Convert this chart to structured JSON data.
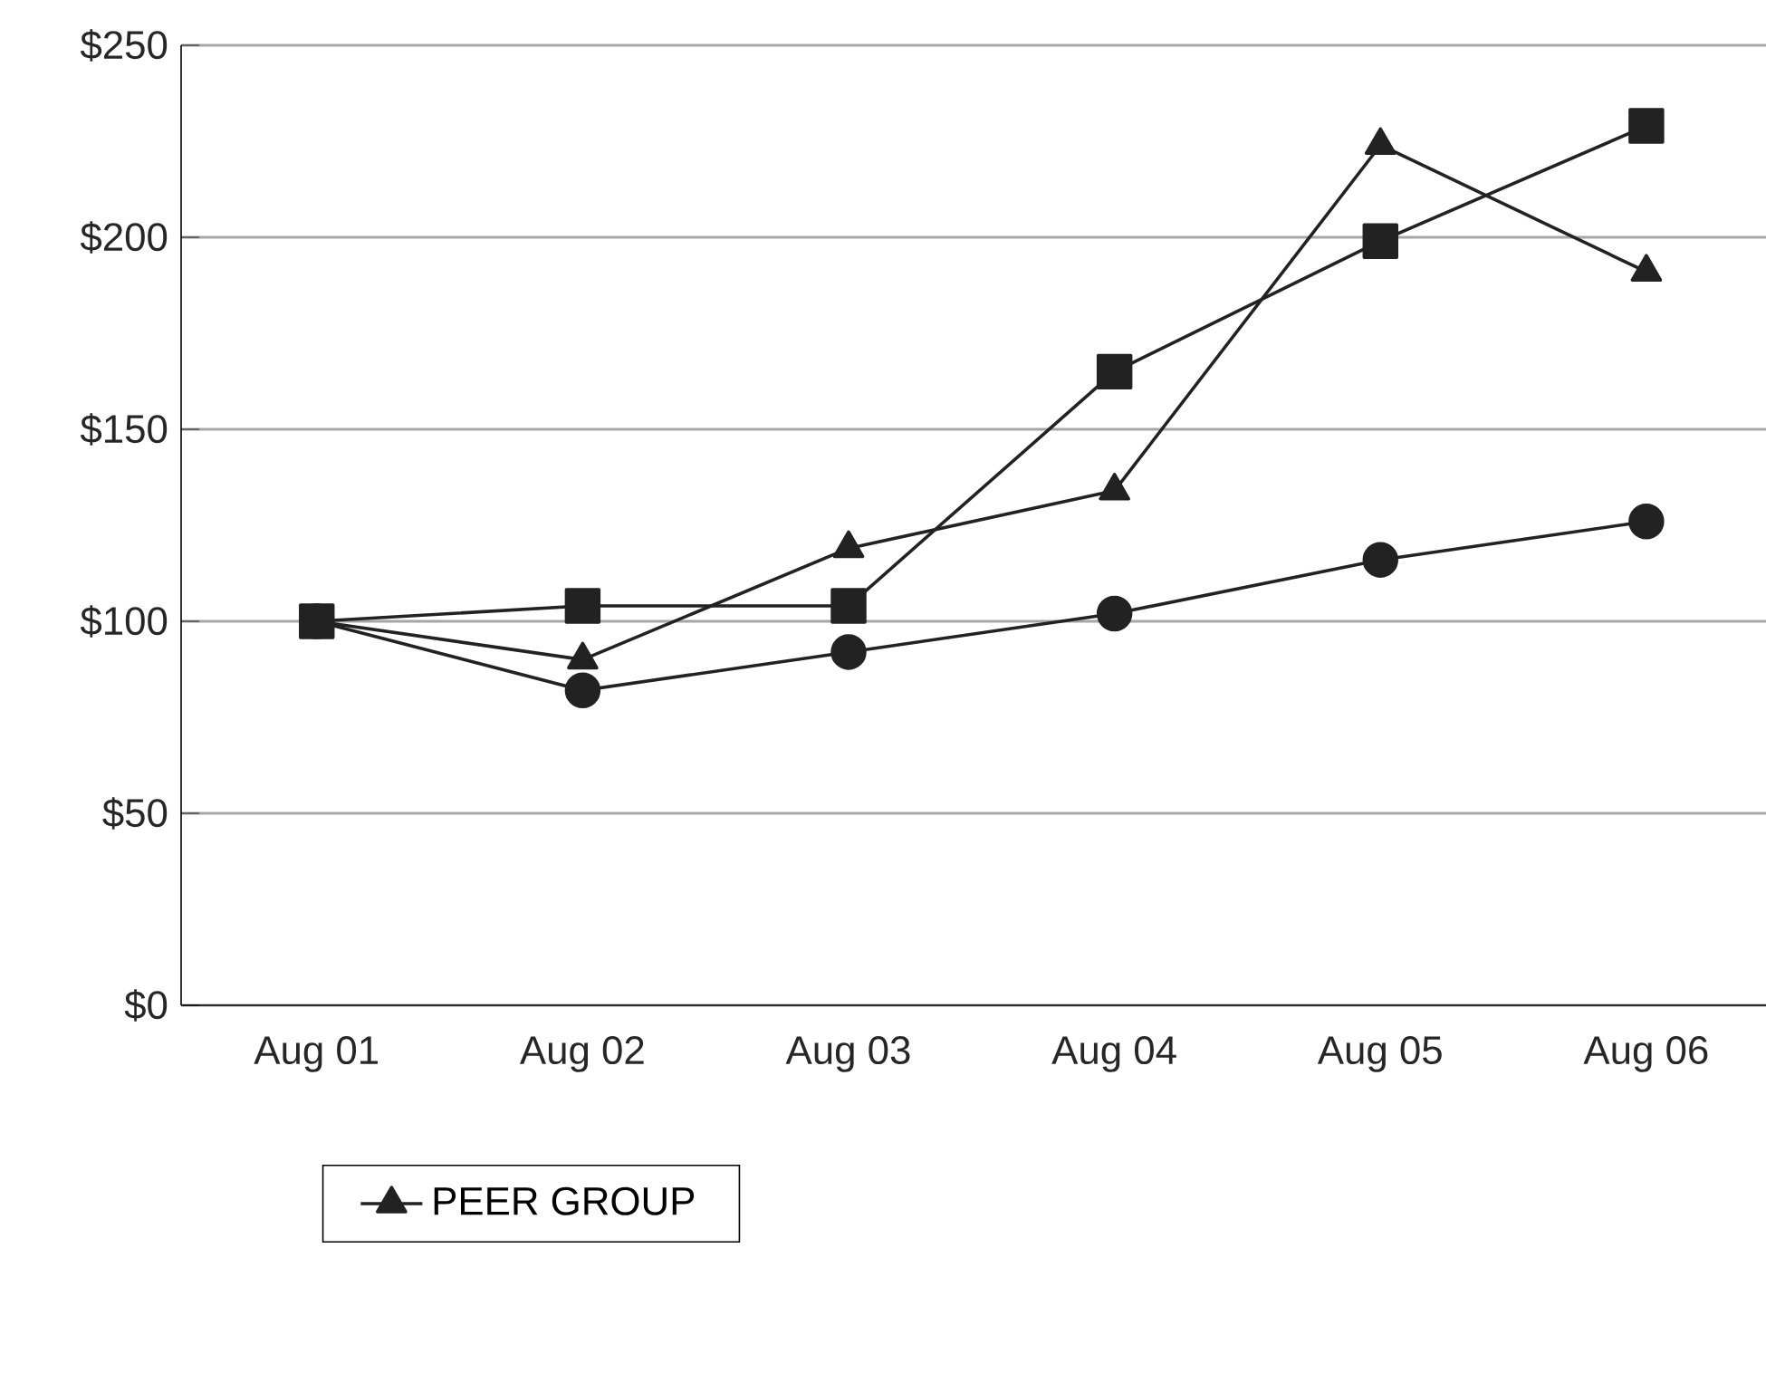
{
  "chart_data": {
    "type": "line",
    "categories": [
      "Aug 01",
      "Aug 02",
      "Aug 03",
      "Aug 04",
      "Aug 05",
      "Aug 06"
    ],
    "ylim": [
      0,
      250
    ],
    "yticks": [
      {
        "value": 0,
        "label": "$0"
      },
      {
        "value": 50,
        "label": "$50"
      },
      {
        "value": 100,
        "label": "$100"
      },
      {
        "value": 150,
        "label": "$150"
      },
      {
        "value": 200,
        "label": "$200"
      },
      {
        "value": 250,
        "label": "$250"
      }
    ],
    "grid": "y",
    "legend": "bottom",
    "series": [
      {
        "name": "PEER GROUP",
        "color": "#222222",
        "marker": "triangle",
        "values": [
          100,
          90,
          119,
          134,
          224,
          191
        ]
      },
      {
        "color": "#222222",
        "marker": "circle",
        "values": [
          100,
          82,
          92,
          102,
          116,
          126
        ]
      },
      {
        "color": "#222222",
        "marker": "square",
        "values": [
          100,
          104,
          104,
          165,
          199,
          229
        ]
      }
    ]
  }
}
